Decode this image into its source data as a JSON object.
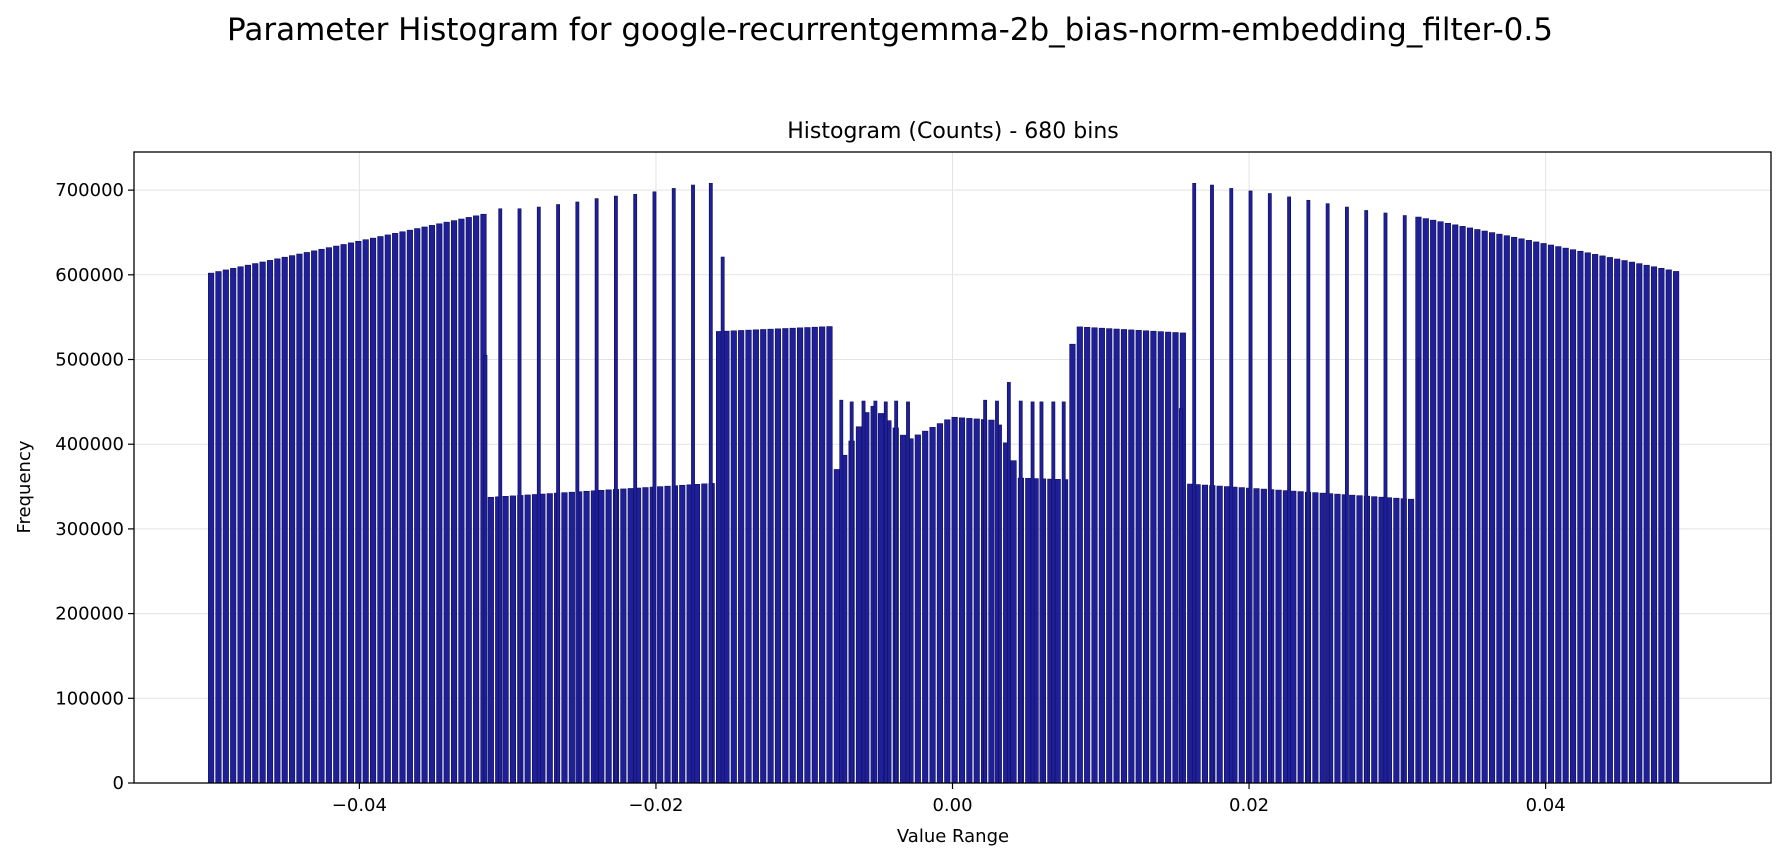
{
  "figure": {
    "suptitle": "Parameter Histogram for google-recurrentgemma-2b_bias-norm-embedding_filter-0.5"
  },
  "chart_data": {
    "type": "bar",
    "title": "Histogram (Counts) - 680 bins",
    "xlabel": "Value Range",
    "ylabel": "Frequency",
    "xlim": [
      -0.0552,
      0.0552
    ],
    "ylim": [
      0,
      745000
    ],
    "xticks": [
      {
        "value": -0.04,
        "label": "−0.04"
      },
      {
        "value": -0.02,
        "label": "−0.02"
      },
      {
        "value": 0.0,
        "label": "0.00"
      },
      {
        "value": 0.02,
        "label": "0.02"
      },
      {
        "value": 0.04,
        "label": "0.04"
      }
    ],
    "yticks": [
      {
        "value": 0,
        "label": "0"
      },
      {
        "value": 100000,
        "label": "100000"
      },
      {
        "value": 200000,
        "label": "200000"
      },
      {
        "value": 300000,
        "label": "300000"
      },
      {
        "value": 400000,
        "label": "400000"
      },
      {
        "value": 500000,
        "label": "500000"
      },
      {
        "value": 600000,
        "label": "600000"
      },
      {
        "value": 700000,
        "label": "700000"
      }
    ],
    "grid": true,
    "bar_color": "#1f1f99",
    "edge_color": "#0d0d55",
    "bin_range": [
      -0.05,
      0.0488
    ],
    "bins": 680,
    "bins_shown": 200,
    "envelope": [
      [
        -0.05,
        602000
      ],
      [
        -0.0315,
        672000
      ],
      [
        -0.03145,
        337000
      ],
      [
        -0.016,
        354000
      ],
      [
        -0.0159,
        533000
      ],
      [
        -0.0082,
        539000
      ],
      [
        -0.0081,
        360000
      ],
      [
        -0.0055,
        448000
      ],
      [
        -0.003,
        405000
      ],
      [
        0.0,
        432000
      ],
      [
        0.003,
        428000
      ],
      [
        0.0046,
        360000
      ],
      [
        0.008,
        358000
      ],
      [
        0.0081,
        539000
      ],
      [
        0.0159,
        531000
      ],
      [
        0.016,
        353000
      ],
      [
        0.031,
        335000
      ],
      [
        0.0312,
        669000
      ],
      [
        0.0488,
        604000
      ]
    ],
    "spikes": [
      [
        -0.0315,
        505000
      ],
      [
        -0.0305,
        678000
      ],
      [
        -0.0292,
        678000
      ],
      [
        -0.0279,
        680000
      ],
      [
        -0.0266,
        683000
      ],
      [
        -0.0253,
        686000
      ],
      [
        -0.024,
        690000
      ],
      [
        -0.0227,
        693000
      ],
      [
        -0.0214,
        695000
      ],
      [
        -0.0201,
        698000
      ],
      [
        -0.0188,
        702000
      ],
      [
        -0.0175,
        706000
      ],
      [
        -0.0163,
        708000
      ],
      [
        -0.0155,
        621000
      ],
      [
        -0.0075,
        452000
      ],
      [
        -0.0068,
        450000
      ],
      [
        -0.006,
        451000
      ],
      [
        -0.0052,
        451000
      ],
      [
        -0.0045,
        450000
      ],
      [
        -0.0038,
        451000
      ],
      [
        -0.003,
        450000
      ],
      [
        0.0022,
        452000
      ],
      [
        0.003,
        451000
      ],
      [
        0.0038,
        473000
      ],
      [
        0.0046,
        451000
      ],
      [
        0.0054,
        450000
      ],
      [
        0.006,
        450000
      ],
      [
        0.0068,
        450000
      ],
      [
        0.0075,
        450000
      ],
      [
        0.0154,
        442000
      ],
      [
        0.0163,
        708000
      ],
      [
        0.0175,
        706000
      ],
      [
        0.0188,
        702000
      ],
      [
        0.0201,
        699000
      ],
      [
        0.0214,
        696000
      ],
      [
        0.0227,
        692000
      ],
      [
        0.024,
        688000
      ],
      [
        0.0253,
        684000
      ],
      [
        0.0266,
        680000
      ],
      [
        0.0279,
        676000
      ],
      [
        0.0292,
        673000
      ],
      [
        0.0305,
        670000
      ],
      [
        0.0315,
        501000
      ]
    ]
  }
}
